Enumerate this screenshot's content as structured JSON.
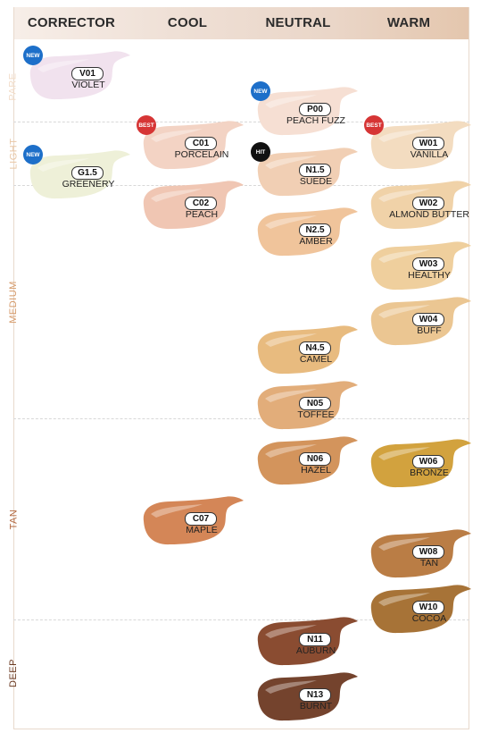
{
  "columns": [
    "CORRECTOR",
    "COOL",
    "NEUTRAL",
    "WARM"
  ],
  "tiers": [
    {
      "label": "PARE",
      "color": "#f2dcc8"
    },
    {
      "label": "LIGHT",
      "color": "#e9c7a6"
    },
    {
      "label": "MEDIUM",
      "color": "#d59a6a"
    },
    {
      "label": "TAN",
      "color": "#b2673e"
    },
    {
      "label": "DEEP",
      "color": "#6b3a22"
    }
  ],
  "badge_colors": {
    "NEW": "#1d6fc9",
    "BEST": "#d63535",
    "HIT": "#111111"
  },
  "shades": [
    {
      "code": "V01",
      "name": "VIOLET",
      "column": "CORRECTOR",
      "tier": "PARE",
      "color": "#f1e2ee",
      "badge": "NEW"
    },
    {
      "code": "P00",
      "name": "PEACH FUZZ",
      "column": "NEUTRAL",
      "tier": "PARE",
      "color": "#f6dfd3",
      "badge": "NEW"
    },
    {
      "code": "C01",
      "name": "PORCELAIN",
      "column": "COOL",
      "tier": "LIGHT",
      "color": "#f3d3c4",
      "badge": "BEST"
    },
    {
      "code": "W01",
      "name": "VANILLA",
      "column": "WARM",
      "tier": "LIGHT",
      "color": "#f3dcc0",
      "badge": "BEST"
    },
    {
      "code": "G1.5",
      "name": "GREENERY",
      "column": "CORRECTOR",
      "tier": "LIGHT",
      "color": "#eef0d8",
      "badge": "NEW"
    },
    {
      "code": "N1.5",
      "name": "SUEDE",
      "column": "NEUTRAL",
      "tier": "LIGHT",
      "color": "#f1cfb4",
      "badge": "HIT"
    },
    {
      "code": "C02",
      "name": "PEACH",
      "column": "COOL",
      "tier": "MEDIUM",
      "color": "#f0c6b3",
      "badge": ""
    },
    {
      "code": "W02",
      "name": "ALMOND BUTTER",
      "column": "WARM",
      "tier": "MEDIUM",
      "color": "#f0d2a8",
      "badge": ""
    },
    {
      "code": "N2.5",
      "name": "AMBER",
      "column": "NEUTRAL",
      "tier": "MEDIUM",
      "color": "#f0c49b",
      "badge": ""
    },
    {
      "code": "W03",
      "name": "HEALTHY",
      "column": "WARM",
      "tier": "MEDIUM",
      "color": "#efcf9d",
      "badge": ""
    },
    {
      "code": "W04",
      "name": "BUFF",
      "column": "WARM",
      "tier": "MEDIUM",
      "color": "#ebc692",
      "badge": ""
    },
    {
      "code": "N4.5",
      "name": "CAMEL",
      "column": "NEUTRAL",
      "tier": "MEDIUM",
      "color": "#e8bb7f",
      "badge": ""
    },
    {
      "code": "N05",
      "name": "TOFFEE",
      "column": "NEUTRAL",
      "tier": "MEDIUM",
      "color": "#e2ad7a",
      "badge": ""
    },
    {
      "code": "N06",
      "name": "HAZEL",
      "column": "NEUTRAL",
      "tier": "TAN",
      "color": "#d3945c",
      "badge": ""
    },
    {
      "code": "W06",
      "name": "BRONZE",
      "column": "WARM",
      "tier": "TAN",
      "color": "#d2a23e",
      "badge": ""
    },
    {
      "code": "C07",
      "name": "MAPLE",
      "column": "COOL",
      "tier": "TAN",
      "color": "#d48657",
      "badge": ""
    },
    {
      "code": "W08",
      "name": "TAN",
      "column": "WARM",
      "tier": "TAN",
      "color": "#ba7d45",
      "badge": ""
    },
    {
      "code": "W10",
      "name": "COCOA",
      "column": "WARM",
      "tier": "TAN",
      "color": "#a77337",
      "badge": ""
    },
    {
      "code": "N11",
      "name": "AUBURN",
      "column": "NEUTRAL",
      "tier": "DEEP",
      "color": "#8a4c31",
      "badge": ""
    },
    {
      "code": "N13",
      "name": "BURNT",
      "column": "NEUTRAL",
      "tier": "DEEP",
      "color": "#74432d",
      "badge": ""
    }
  ]
}
